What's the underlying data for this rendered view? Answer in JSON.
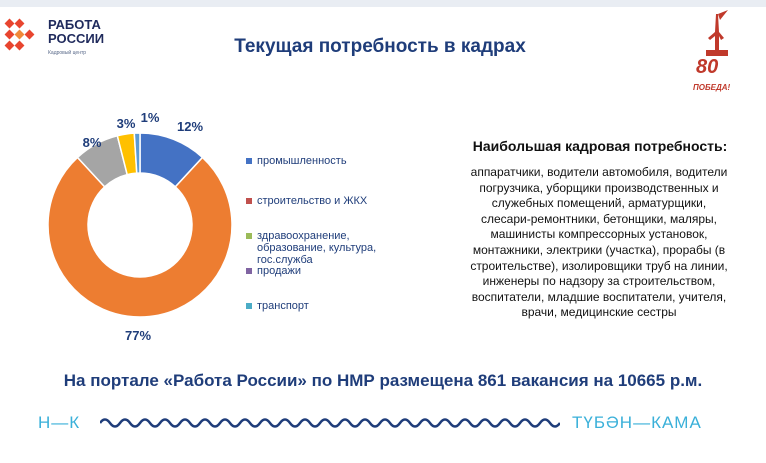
{
  "header": {
    "logo_title_line1": "РАБОТА",
    "logo_title_line2": "РОССИИ",
    "logo_subtitle": "Кадровый центр",
    "slide_title": "Текущая потребность в кадрах",
    "badge_number": "80",
    "badge_word": "ПОБЕДА!"
  },
  "colors": {
    "brand_blue": "#1f3d7a",
    "accent_red": "#e8452f",
    "river_blue": "#3ab0d9"
  },
  "chart_data": {
    "type": "pie",
    "donut": true,
    "title": "",
    "categories": [
      "промышленность",
      "строительство и ЖКХ",
      "здравоохранение, образование, культура, гос.служба",
      "продажи",
      "транспорт"
    ],
    "series": [
      {
        "values": [
          12,
          77,
          8,
          3,
          1
        ]
      }
    ],
    "data_labels": [
      "12%",
      "77%",
      "8%",
      "3%",
      "1%"
    ],
    "slice_colors": [
      "#4472c4",
      "#ed7d31",
      "#a5a5a5",
      "#ffc000",
      "#5b9bd5"
    ],
    "legend_colors": [
      "#4472c4",
      "#c0504d",
      "#9bbb59",
      "#8064a2",
      "#4bacc6"
    ],
    "legend_position": "right"
  },
  "needs": {
    "title": "Наибольшая кадровая потребность:",
    "lines": [
      "аппаратчики, водители автомобиля, водители",
      "погрузчика, уборщики производственных и",
      "служебных помещений, арматурщики,",
      "слесари-ремонтники, бетонщики, маляры,",
      "машинисты компрессорных установок,",
      "монтажники, электрики (участка), прорабы (в",
      "строительстве), изолировщики труб на линии,",
      "инженеры по надзору за строительством,",
      "воспитатели, младшие воспитатели, учителя,",
      "врачи, медицинские сестры"
    ]
  },
  "footer": {
    "summary": "На портале «Работа России» по НМР размещена 861 вакансия на 10665 р.м.",
    "city_left": "Н—К",
    "city_right": "ТҮБӘН—КАМА"
  }
}
